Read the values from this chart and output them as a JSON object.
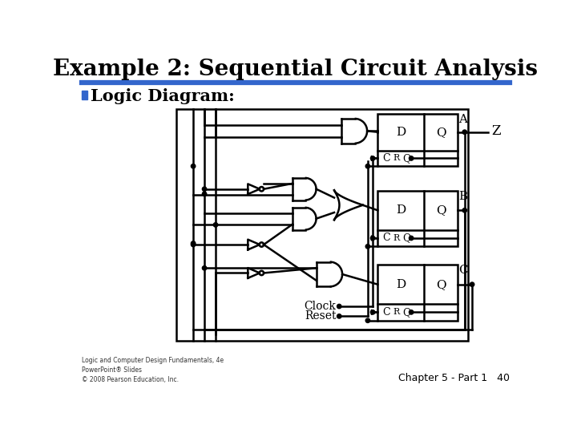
{
  "title": "Example 2: Sequential Circuit Analysis",
  "title_fontsize": 20,
  "subtitle": "Logic Diagram:",
  "subtitle_fontsize": 15,
  "bg_color": "#ffffff",
  "line_color": "#000000",
  "title_bar_color": "#3366cc",
  "footer_text": "Logic and Computer Design Fundamentals, 4e\nPowerPoint® Slides\n© 2008 Pearson Education, Inc.",
  "footer_right": "Chapter 5 - Part 1   40",
  "blue_bullet_color": "#3366cc"
}
